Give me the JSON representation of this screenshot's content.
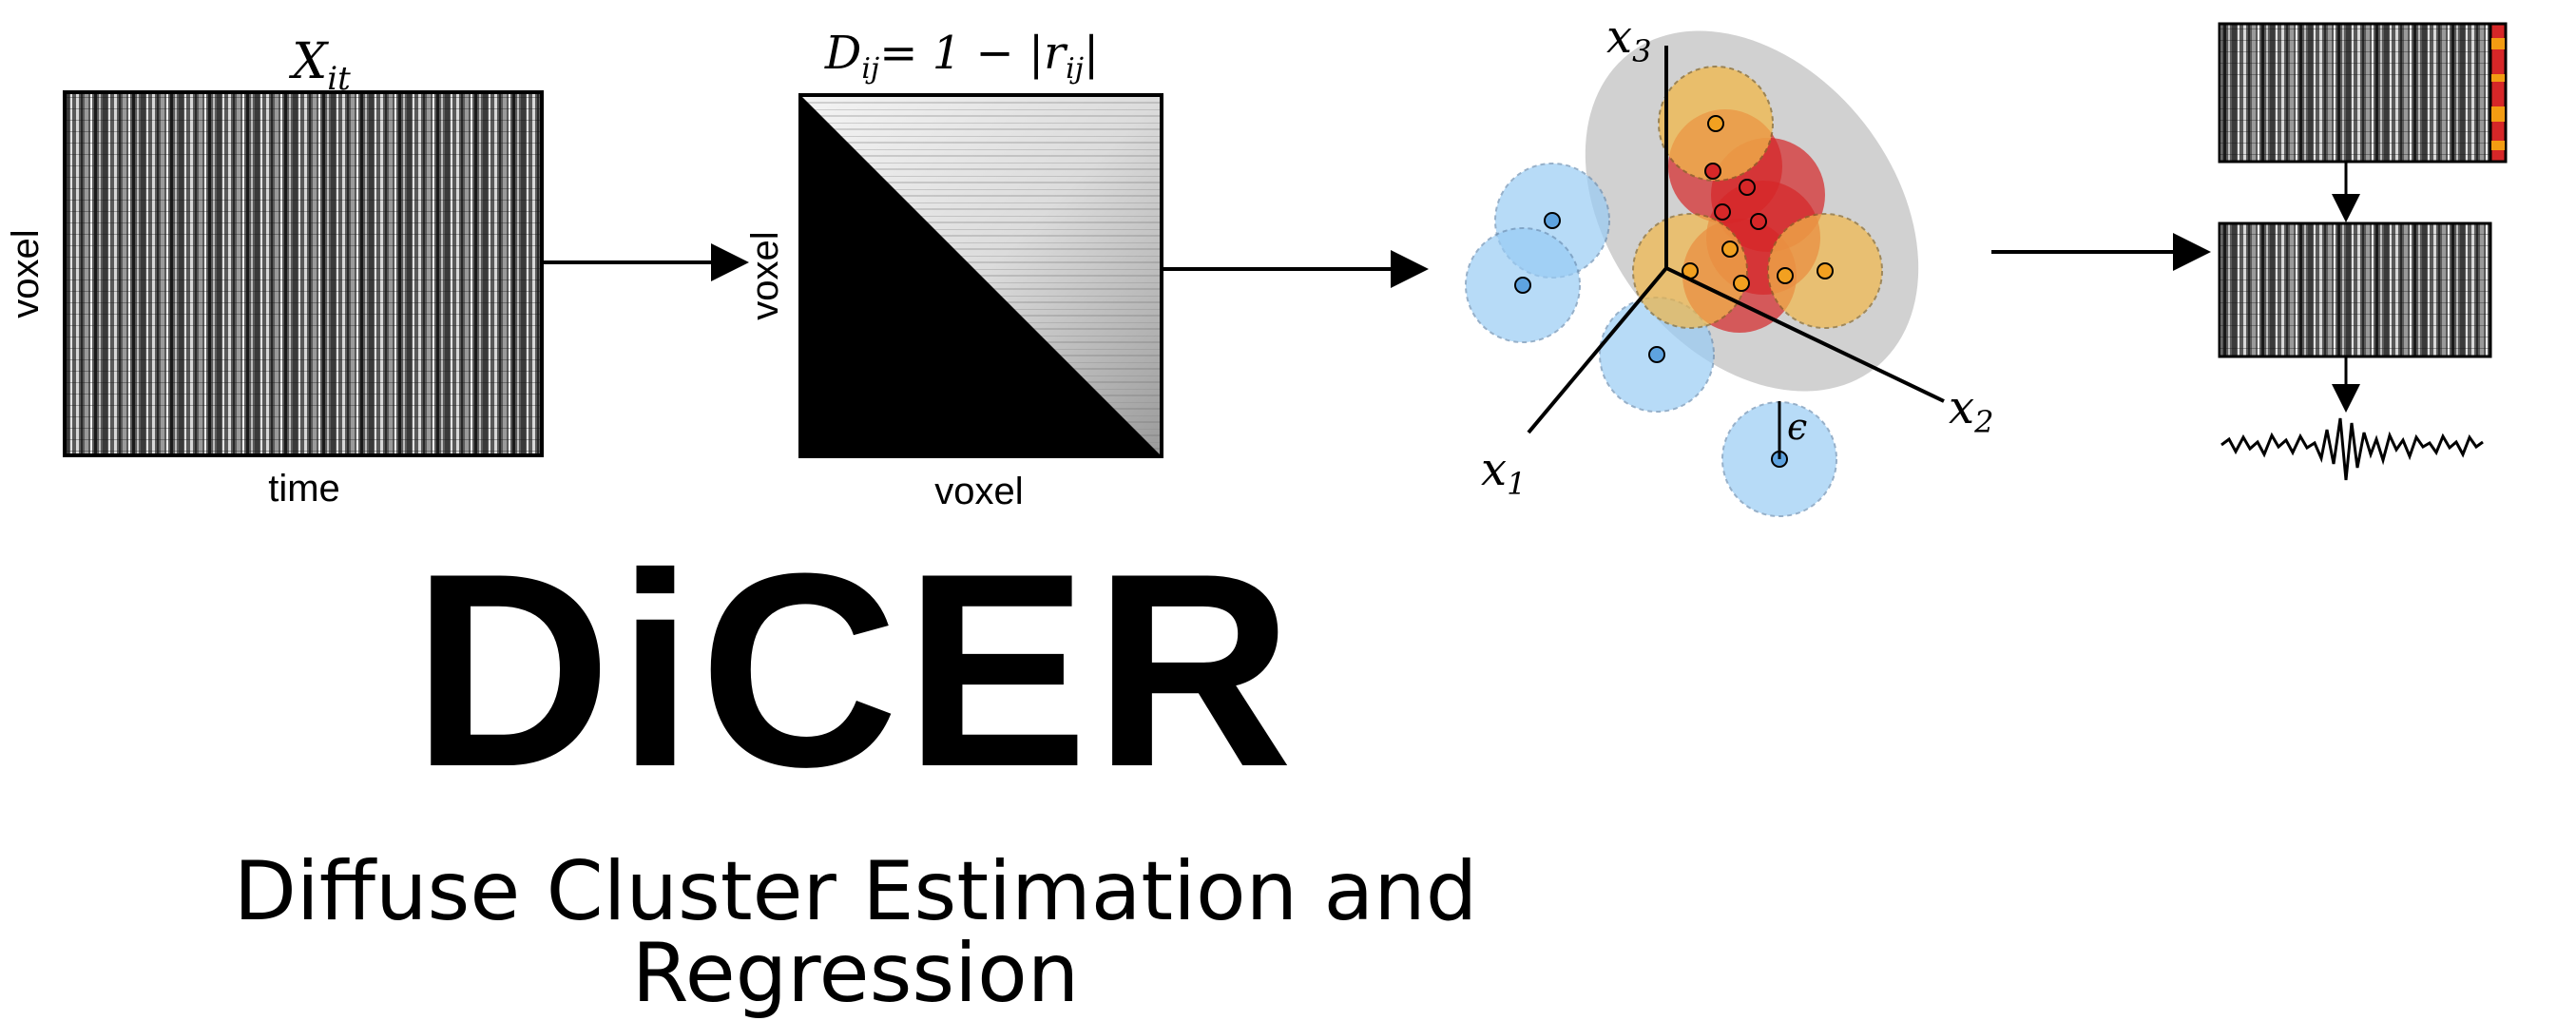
{
  "panel1": {
    "title": "X_it",
    "title_base": "X",
    "title_sub": "it",
    "ylabel": "voxel",
    "xlabel": "time"
  },
  "panel2": {
    "title": "D_ij = 1 − |r_ij|",
    "title_lhs": "D",
    "title_lhs_sub": "ij",
    "title_rhs": "= 1 − |r",
    "title_rhs_sub": "ij",
    "title_close": "|",
    "ylabel": "voxel",
    "xlabel": "voxel"
  },
  "panel3": {
    "axis_x1": "x",
    "axis_x1_sub": "1",
    "axis_x2": "x",
    "axis_x2_sub": "2",
    "axis_x3": "x",
    "axis_x3_sub": "3",
    "epsilon": "ϵ",
    "colors": {
      "noise": "#99ccf5",
      "cluster_core": "#d62728",
      "cluster_edge": "#f2b84a",
      "hull": "#b3b3b3"
    }
  },
  "panel4": {
    "colorbar_colors": [
      "#d62728",
      "#f39c12"
    ]
  },
  "brand": {
    "name": "DiCER",
    "subtitle": "Diffuse Cluster Estimation and Regression"
  }
}
